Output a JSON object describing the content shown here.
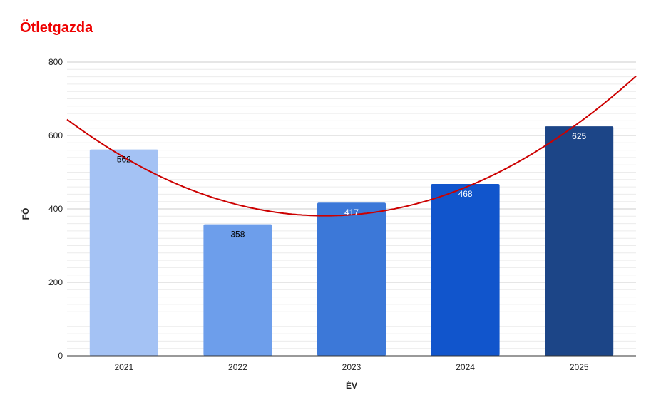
{
  "chart_data": {
    "type": "bar",
    "title": "Ötletgazda",
    "xlabel": "ÉV",
    "ylabel": "FŐ",
    "categories": [
      "2021",
      "2022",
      "2023",
      "2024",
      "2025"
    ],
    "values": [
      562,
      358,
      417,
      468,
      625
    ],
    "value_labels": [
      "562",
      "358",
      "417",
      "468",
      "625"
    ],
    "ylim": [
      0,
      800
    ],
    "y_ticks": [
      0,
      200,
      400,
      600,
      800
    ],
    "y_tick_labels": [
      "0",
      "200",
      "400",
      "600",
      "800"
    ],
    "minor_grid_step": 20,
    "grid": true,
    "legend": "none",
    "trendline": {
      "type": "polynomial",
      "degree": 2,
      "color": "#cc0000"
    },
    "colors": {
      "title": "#ee0000",
      "bars": [
        "#a4c2f4",
        "#6d9eeb",
        "#3c78d8",
        "#1155cc",
        "#1c4587"
      ],
      "label_text": [
        "#000000",
        "#000000",
        "#ffffff",
        "#ffffff",
        "#ffffff"
      ],
      "trendline": "#cc0000",
      "major_grid": "#cccccc",
      "minor_grid": "#ececec",
      "axis": "#333333"
    }
  }
}
